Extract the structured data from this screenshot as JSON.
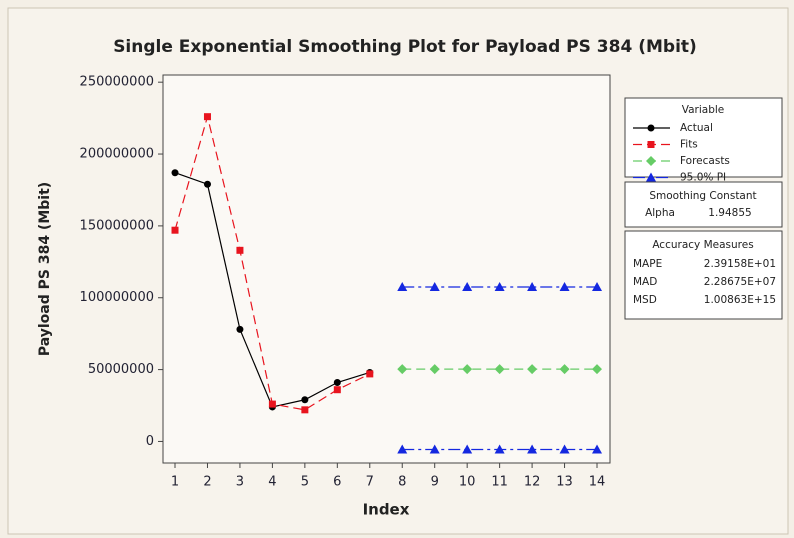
{
  "chart_data": {
    "type": "line",
    "title": "Single Exponential Smoothing Plot for Payload PS 384 (Mbit)",
    "x_label": "Index",
    "y_label": "Payload PS 384 (Mbit)",
    "x": [
      1,
      2,
      3,
      4,
      5,
      6,
      7,
      8,
      9,
      10,
      11,
      12,
      13,
      14
    ],
    "xlim": [
      0.63,
      14.4
    ],
    "xticks": [
      1,
      2,
      3,
      4,
      5,
      6,
      7,
      8,
      9,
      10,
      11,
      12,
      13,
      14
    ],
    "ylim": [
      -15000000,
      255000000
    ],
    "yticks": [
      0,
      50000000,
      100000000,
      150000000,
      200000000,
      250000000
    ],
    "legend_title": "Variable",
    "series": [
      {
        "name": "Actual",
        "color": "#000000",
        "marker": "circle",
        "dash": "solid",
        "values": [
          187000000,
          179000000,
          78000000,
          24000000,
          29000000,
          41000000,
          48000000,
          null,
          null,
          null,
          null,
          null,
          null,
          null
        ]
      },
      {
        "name": "Fits",
        "color": "#e8141e",
        "marker": "square",
        "dash": "dashed",
        "values": [
          147000000,
          226000000,
          133000000,
          26000000,
          22000000,
          36000000,
          47000000,
          null,
          null,
          null,
          null,
          null,
          null,
          null
        ]
      },
      {
        "name": "Forecasts",
        "color": "#66cc66",
        "marker": "diamond",
        "dash": "dashed",
        "values": [
          null,
          null,
          null,
          null,
          null,
          null,
          null,
          50300000,
          50300000,
          50300000,
          50300000,
          50300000,
          50300000,
          50300000
        ]
      },
      {
        "name": "95.0% PI",
        "color": "#1428e0",
        "marker": "triangle",
        "dash": "dashdot",
        "values": [
          null,
          null,
          null,
          null,
          null,
          null,
          null,
          107500000,
          107500000,
          107500000,
          107500000,
          107500000,
          107500000,
          107500000
        ],
        "lower": [
          null,
          null,
          null,
          null,
          null,
          null,
          null,
          -5600000,
          -5600000,
          -5600000,
          -5600000,
          -5600000,
          -5600000,
          -5600000
        ]
      }
    ],
    "smoothing": {
      "title": "Smoothing Constant",
      "label": "Alpha",
      "value": 1.94855
    },
    "accuracy": {
      "title": "Accuracy Measures",
      "rows": [
        [
          "MAPE",
          "2.39158E+01"
        ],
        [
          "MAD",
          "2.28675E+07"
        ],
        [
          "MSD",
          "1.00863E+15"
        ]
      ]
    }
  }
}
